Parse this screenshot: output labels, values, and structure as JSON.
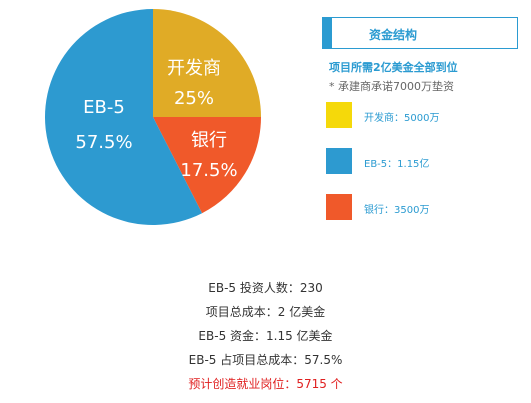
{
  "chart_data": {
    "type": "pie",
    "slices": [
      {
        "name_line1": "开发商",
        "value_label": "25%",
        "value": 25,
        "color": "#e0ab26"
      },
      {
        "name_line1": "银行",
        "value_label": "17.5%",
        "value": 17.5,
        "color": "#f0592a"
      },
      {
        "name_line1": "EB-5",
        "value_label": "57.5%",
        "value": 57.5,
        "color": "#2d9ad0"
      }
    ]
  },
  "legend": {
    "title": "资金结构",
    "note1": "项目所需2亿美金全部到位",
    "note2": "*  承建商承诺7000万垫资",
    "items": [
      {
        "label": "开发商：5000万",
        "color": "#f5d90a"
      },
      {
        "label": "EB-5：1.15亿",
        "color": "#2d9ad0"
      },
      {
        "label": "银行：3500万",
        "color": "#f0592a"
      }
    ]
  },
  "stats": {
    "investors": "EB-5 投资人数：230",
    "total_cost": "项目总成本：2 亿美金",
    "eb5_funds": "EB-5 资金：1.15 亿美金",
    "eb5_share": "EB-5 占项目总成本：57.5%",
    "jobs": "预计创造就业岗位：5715 个"
  }
}
